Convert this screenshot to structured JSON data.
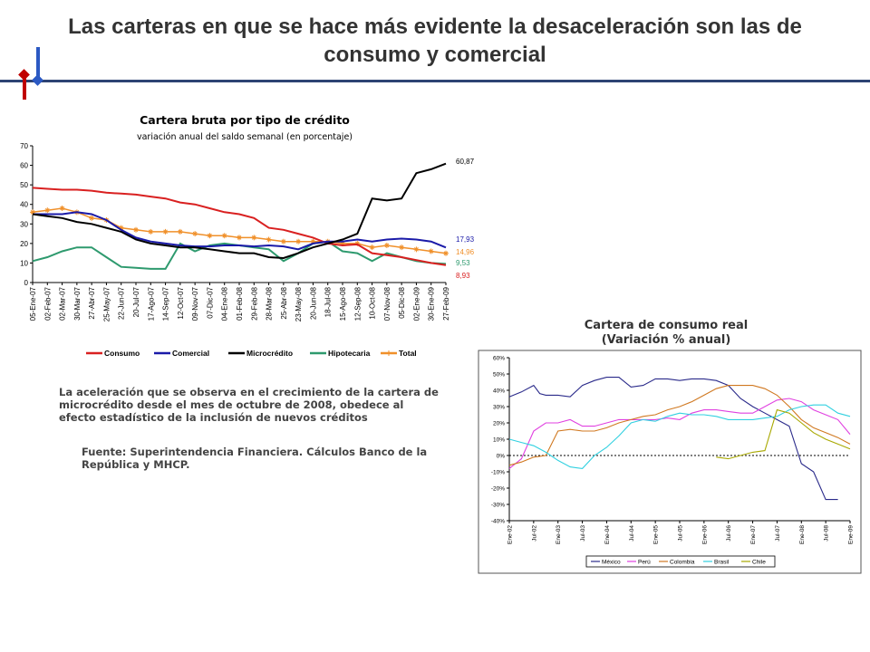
{
  "slide": {
    "title": "Las carteras en que se hace más evidente la desaceleración son las de consumo y comercial",
    "note": "La aceleración que se observa en el crecimiento de la cartera de microcrédito desde el mes de octubre de 2008, obedece al efecto estadístico de la inclusión de nuevos créditos",
    "source": "Fuente: Superintendencia Financiera. Cálculos Banco de la República y MHCP."
  },
  "colors": {
    "consumo": "#d92020",
    "comercial": "#1a1aa8",
    "microcredito": "#000000",
    "hipotecaria": "#2e9a6e",
    "total": "#f0902a",
    "mexico": "#2a2a8a",
    "peru": "#e040e0",
    "colombia": "#d07820",
    "brasil": "#30d0e0",
    "chile": "#a8a800",
    "accent_blue": "#2b59c3",
    "accent_red": "#c00000"
  },
  "chart_data": [
    {
      "type": "line",
      "title": "Cartera bruta por tipo de crédito",
      "subtitle": "variación anual del saldo semanal (en porcentaje)",
      "ylim": [
        0,
        70
      ],
      "yticks": [
        "0",
        "10",
        "20",
        "30",
        "40",
        "50",
        "60",
        "70"
      ],
      "categories": [
        "05-Ene-07",
        "02-Feb-07",
        "02-Mar-07",
        "30-Mar-07",
        "27-Abr-07",
        "25-May-07",
        "22-Jun-07",
        "20-Jul-07",
        "17-Ago-07",
        "14-Sep-07",
        "12-Oct-07",
        "09-Nov-07",
        "07-Dic-07",
        "04-Ene-08",
        "01-Feb-08",
        "29-Feb-08",
        "28-Mar-08",
        "25-Abr-08",
        "23-May-08",
        "20-Jun-08",
        "18-Jul-08",
        "15-Ago-08",
        "12-Sep-08",
        "10-Oct-08",
        "07-Nov-08",
        "05-Dic-08",
        "02-Ene-09",
        "30-Ene-09",
        "27-Feb-09"
      ],
      "grid": false,
      "legend": "bottom",
      "series": [
        {
          "name": "Consumo",
          "key": "consumo",
          "end_label": "8,93",
          "values": [
            48.5,
            48,
            47.5,
            47.5,
            47,
            46,
            45.5,
            45,
            44,
            43,
            41,
            40,
            38,
            36,
            35,
            33,
            28,
            27,
            25,
            23,
            20,
            19,
            19.5,
            15,
            14,
            13,
            11.5,
            10,
            8.93
          ]
        },
        {
          "name": "Comercial",
          "key": "comercial",
          "end_label": "17,93",
          "values": [
            35,
            35,
            35,
            36,
            35,
            32,
            27,
            23,
            21,
            20,
            19,
            18.5,
            18.5,
            19,
            19,
            18.5,
            19,
            18.5,
            17,
            20,
            21,
            21,
            22,
            21,
            22,
            22.5,
            22,
            21,
            17.93
          ]
        },
        {
          "name": "Microcrédito",
          "key": "microcredito",
          "end_label": "60,87",
          "values": [
            35,
            34,
            33,
            31,
            30,
            28,
            26,
            22,
            20,
            19,
            18,
            18,
            17,
            16,
            15,
            15,
            13,
            12.5,
            15,
            18,
            20,
            22,
            25,
            43,
            42,
            43,
            56,
            58,
            60.87
          ]
        },
        {
          "name": "Hipotecaria",
          "key": "hipotecaria",
          "end_label": "9,53",
          "values": [
            11,
            13,
            16,
            18,
            18,
            13,
            8,
            7.5,
            7,
            7,
            20,
            16,
            19,
            20,
            19,
            18,
            17,
            11,
            15,
            20,
            21,
            16,
            15,
            11,
            15,
            13,
            11,
            10,
            9.53
          ]
        },
        {
          "name": "Total",
          "key": "total",
          "end_label": "14,96",
          "values": [
            36,
            37,
            38,
            36,
            33,
            32,
            28,
            27,
            26,
            26,
            26,
            25,
            24,
            24,
            23,
            23,
            22,
            21,
            21,
            21,
            21,
            20,
            20,
            18,
            19,
            18,
            17,
            16,
            14.96
          ]
        }
      ]
    },
    {
      "type": "line",
      "title": "Cartera de consumo real\n(Variación % anual)",
      "ylim": [
        -40,
        60
      ],
      "yticks": [
        "-40%",
        "-30%",
        "-20%",
        "-10%",
        "0%",
        "10%",
        "20%",
        "30%",
        "40%",
        "50%",
        "60%"
      ],
      "categories": [
        "Ene-02",
        "Jul-02",
        "Ene-03",
        "Jul-03",
        "Ene-04",
        "Jul-04",
        "Ene-05",
        "Jul-05",
        "Ene-06",
        "Jul-06",
        "Ene-07",
        "Jul-07",
        "Ene-08",
        "Jul-08",
        "Ene-09"
      ],
      "grid": false,
      "zero_line": "dotted",
      "legend": "bottom",
      "series": [
        {
          "name": "México",
          "key": "mexico",
          "x": [
            0,
            0.5,
            1,
            1.25,
            1.5,
            2,
            2.5,
            3,
            3.5,
            4,
            4.5,
            5,
            5.5,
            6,
            6.5,
            7,
            7.5,
            8,
            8.5,
            9,
            9.5,
            10,
            10.5,
            11,
            11.5,
            12,
            12.5,
            13,
            13.5
          ],
          "values": [
            36,
            39,
            43,
            38,
            37,
            37,
            36,
            43,
            46,
            48,
            48,
            42,
            43,
            47,
            47,
            46,
            47,
            47,
            46,
            43,
            35,
            30,
            26,
            22,
            18,
            -5,
            -10,
            -27,
            -27
          ]
        },
        {
          "name": "Perú",
          "key": "peru",
          "x": [
            0,
            0.5,
            1,
            1.5,
            2,
            2.5,
            3,
            3.5,
            4,
            4.5,
            5,
            5.5,
            6,
            6.5,
            7,
            7.5,
            8,
            8.5,
            9,
            9.5,
            10,
            10.5,
            11,
            11.5,
            12,
            12.5,
            13,
            13.5,
            14
          ],
          "values": [
            -8,
            -2,
            15,
            20,
            20,
            22,
            18,
            18,
            20,
            22,
            22,
            22,
            22,
            23,
            22,
            26,
            28,
            28,
            27,
            26,
            26,
            30,
            34,
            35,
            33,
            28,
            25,
            22,
            13
          ]
        },
        {
          "name": "Colombia",
          "key": "colombia",
          "x": [
            0,
            0.5,
            1,
            1.5,
            2,
            2.5,
            3,
            3.5,
            4,
            4.5,
            5,
            5.5,
            6,
            6.5,
            7,
            7.5,
            8,
            8.5,
            9,
            9.5,
            10,
            10.5,
            11,
            11.5,
            12,
            12.5,
            13,
            13.5,
            14
          ],
          "values": [
            -6,
            -4,
            -1,
            0,
            15,
            16,
            15,
            15,
            17,
            20,
            22,
            24,
            25,
            28,
            30,
            33,
            37,
            41,
            43,
            43,
            43,
            41,
            37,
            30,
            22,
            17,
            14,
            11,
            7
          ]
        },
        {
          "name": "Brasil",
          "key": "brasil",
          "x": [
            0,
            0.5,
            1,
            1.5,
            2,
            2.5,
            3,
            3.5,
            4,
            4.5,
            5,
            5.5,
            6,
            6.5,
            7,
            7.5,
            8,
            8.5,
            9,
            9.5,
            10,
            10.5,
            11,
            11.5,
            12,
            12.5,
            13,
            13.5,
            14
          ],
          "values": [
            10,
            8,
            6,
            2,
            -3,
            -7,
            -8,
            0,
            5,
            12,
            20,
            22,
            21,
            24,
            26,
            25,
            25,
            24,
            22,
            22,
            22,
            23,
            24,
            28,
            30,
            31,
            31,
            26,
            24
          ]
        },
        {
          "name": "Chile",
          "key": "chile",
          "x": [
            8.5,
            9,
            9.5,
            10,
            10.5,
            11,
            11.5,
            12,
            12.5,
            13,
            13.5,
            14
          ],
          "values": [
            -1,
            -2,
            0,
            2,
            3,
            28,
            26,
            20,
            14,
            10,
            7,
            4
          ]
        }
      ]
    }
  ]
}
